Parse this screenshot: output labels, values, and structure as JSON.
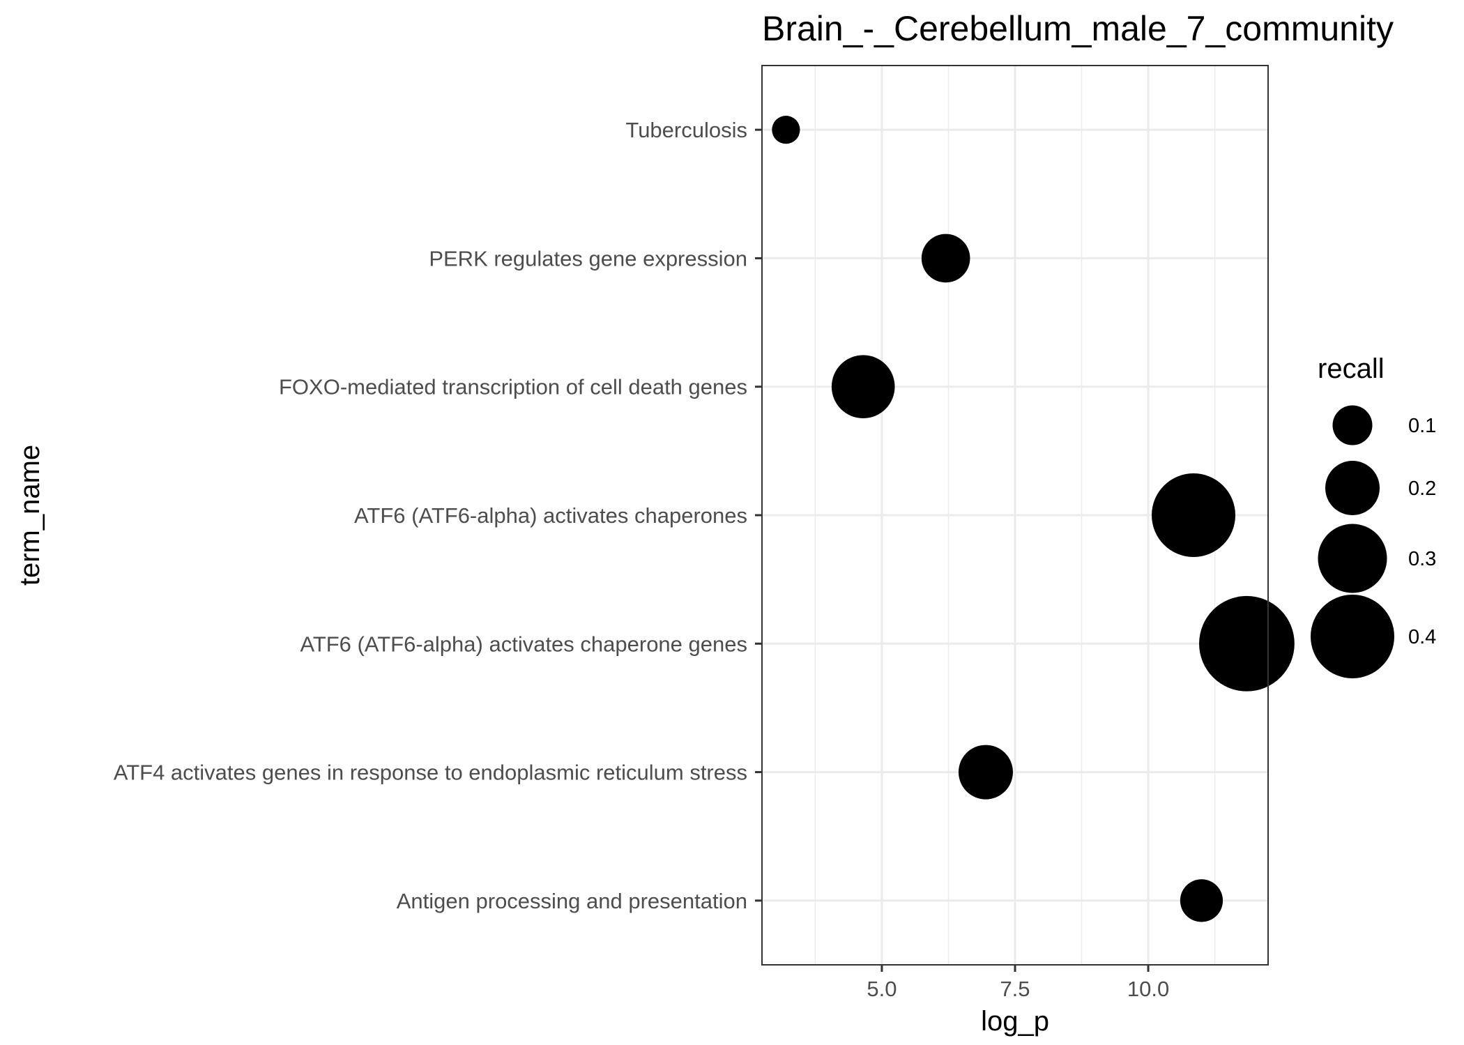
{
  "chart_data": {
    "type": "scatter",
    "title": "Brain_-_Cerebellum_male_7_community",
    "xlabel": "log_p",
    "ylabel": "term_name",
    "xlim": [
      2.75,
      12.25
    ],
    "x_ticks": [
      5.0,
      7.5,
      10.0
    ],
    "x_tick_labels": [
      "5.0",
      "7.5",
      "10.0"
    ],
    "x_minor_gridlines": [
      3.75,
      6.25,
      8.75,
      11.25
    ],
    "grid": true,
    "categories": [
      "Tuberculosis",
      "PERK regulates gene expression",
      "FOXO-mediated transcription of cell death genes",
      "ATF6 (ATF6-alpha) activates chaperones",
      "ATF6 (ATF6-alpha) activates chaperone genes",
      "ATF4 activates genes in response to endoplasmic reticulum  stress",
      "Antigen processing and presentation"
    ],
    "points": [
      {
        "term": "Tuberculosis",
        "log_p": 3.2,
        "recall": 0.02
      },
      {
        "term": "PERK regulates gene expression",
        "log_p": 6.2,
        "recall": 0.16
      },
      {
        "term": "FOXO-mediated transcription of cell death genes",
        "log_p": 4.65,
        "recall": 0.26
      },
      {
        "term": "ATF6 (ATF6-alpha) activates chaperones",
        "log_p": 10.85,
        "recall": 0.4
      },
      {
        "term": "ATF6 (ATF6-alpha) activates chaperone genes",
        "log_p": 11.85,
        "recall": 0.48
      },
      {
        "term": "ATF4 activates genes in response to endoplasmic reticulum  stress",
        "log_p": 6.95,
        "recall": 0.2
      },
      {
        "term": "Antigen processing and presentation",
        "log_p": 11.0,
        "recall": 0.12
      }
    ],
    "size_legend": {
      "title": "recall",
      "values": [
        0.1,
        0.2,
        0.3,
        0.4
      ],
      "labels": [
        "0.1",
        "0.2",
        "0.3",
        "0.4"
      ]
    },
    "point_color": "#000000"
  }
}
